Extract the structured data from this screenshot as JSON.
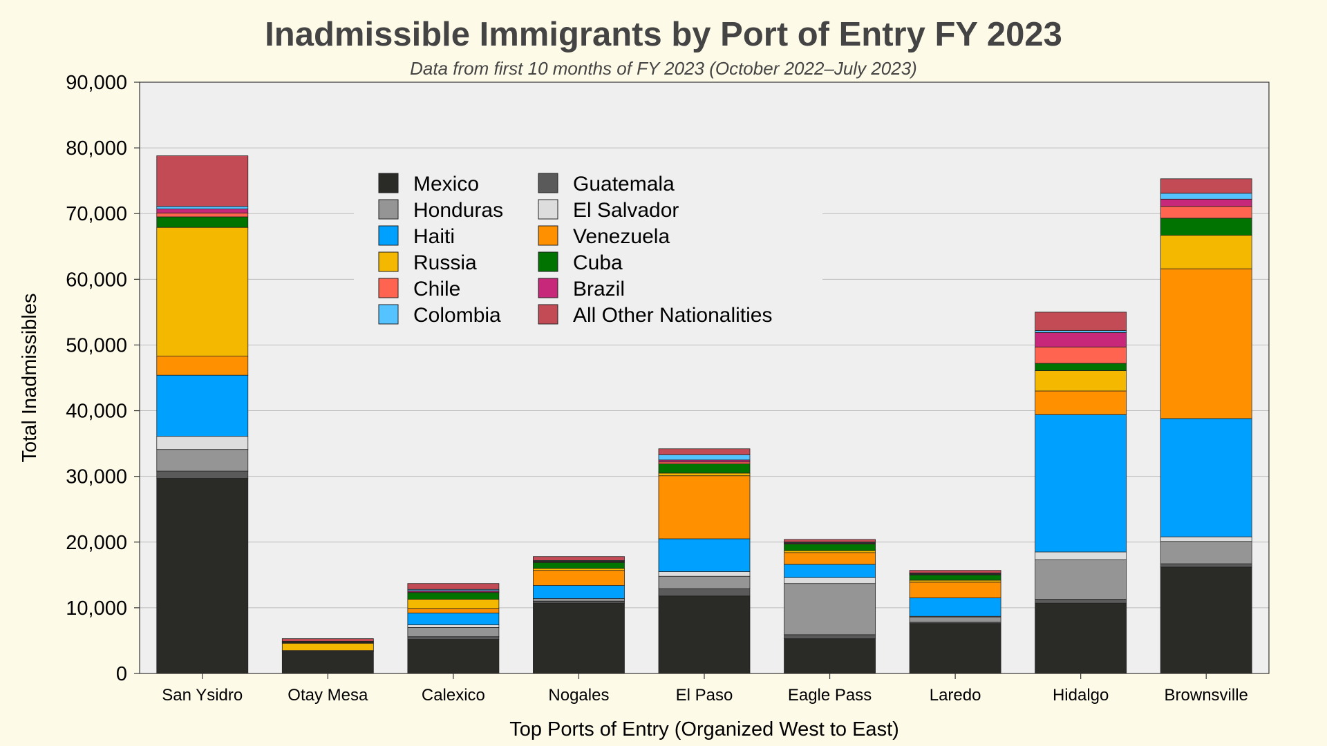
{
  "chart_data": {
    "type": "bar",
    "stacked": true,
    "title": "Inadmissible Immigrants by Port of Entry FY 2023",
    "subtitle": "Data from first 10 months of FY 2023 (October 2022–July 2023)",
    "xlabel": "Top Ports of Entry (Organized West to East)",
    "ylabel": "Total Inadmissibles",
    "ylim": [
      0,
      90000
    ],
    "yticks": [
      "0",
      "10,000",
      "20,000",
      "30,000",
      "40,000",
      "50,000",
      "60,000",
      "70,000",
      "80,000",
      "90,000"
    ],
    "grid": true,
    "legend_position": "top-center",
    "categories": [
      "San Ysidro",
      "Otay Mesa",
      "Calexico",
      "Nogales",
      "El Paso",
      "Eagle Pass",
      "Laredo",
      "Hidalgo",
      "Brownsville"
    ],
    "series": [
      {
        "name": "Mexico",
        "color": "#2a2a27",
        "values": [
          29700,
          3300,
          5200,
          10700,
          11800,
          5300,
          7600,
          10700,
          16200
        ]
      },
      {
        "name": "Guatemala",
        "color": "#5a5a5a",
        "values": [
          1100,
          100,
          400,
          300,
          1100,
          600,
          200,
          600,
          500
        ]
      },
      {
        "name": "Honduras",
        "color": "#959595",
        "values": [
          3300,
          100,
          1400,
          200,
          1900,
          7800,
          800,
          6000,
          3400
        ]
      },
      {
        "name": "El Salvador",
        "color": "#dddddd",
        "values": [
          2000,
          0,
          400,
          200,
          700,
          900,
          100,
          1200,
          700
        ]
      },
      {
        "name": "Haiti",
        "color": "#00a0ff",
        "values": [
          9300,
          0,
          1800,
          2000,
          5000,
          2000,
          2800,
          20900,
          18000
        ]
      },
      {
        "name": "Venezuela",
        "color": "#ff9000",
        "values": [
          2900,
          0,
          700,
          2300,
          9600,
          1800,
          2400,
          3600,
          22800
        ]
      },
      {
        "name": "Russia",
        "color": "#f5b800",
        "values": [
          19600,
          1100,
          1400,
          300,
          400,
          300,
          300,
          3100,
          5100
        ]
      },
      {
        "name": "Cuba",
        "color": "#007300",
        "values": [
          1600,
          100,
          1000,
          900,
          1400,
          1000,
          800,
          1100,
          2600
        ]
      },
      {
        "name": "Chile",
        "color": "#ff6450",
        "values": [
          600,
          100,
          100,
          100,
          300,
          100,
          100,
          2500,
          1800
        ]
      },
      {
        "name": "Brazil",
        "color": "#c8287a",
        "values": [
          600,
          50,
          200,
          100,
          300,
          100,
          100,
          2200,
          1100
        ]
      },
      {
        "name": "Colombia",
        "color": "#55c3ff",
        "values": [
          400,
          50,
          200,
          100,
          800,
          100,
          100,
          300,
          900
        ]
      },
      {
        "name": "All Other Nationalities",
        "color": "#c34b55",
        "values": [
          7700,
          400,
          900,
          600,
          900,
          400,
          400,
          2800,
          2200
        ]
      }
    ],
    "legend_columns": [
      [
        "Mexico",
        "Honduras",
        "Haiti",
        "Russia",
        "Chile",
        "Colombia"
      ],
      [
        "Guatemala",
        "El Salvador",
        "Venezuela",
        "Cuba",
        "Brazil",
        "All Other Nationalities"
      ]
    ]
  }
}
